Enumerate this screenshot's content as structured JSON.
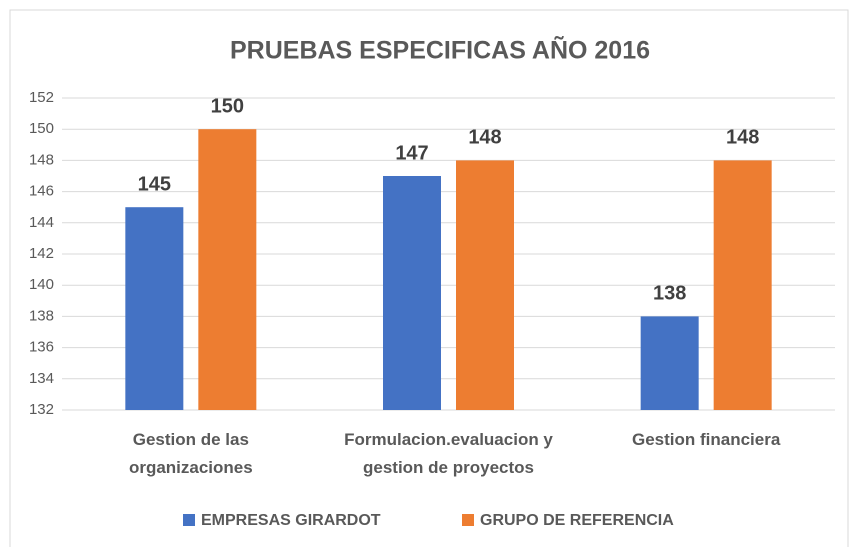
{
  "chart_data": {
    "type": "bar",
    "title": "PRUEBAS ESPECIFICAS AÑO 2016",
    "categories": [
      "Gestion de las organizaciones",
      "Formulacion.evaluacion y gestion de proyectos",
      "Gestion financiera"
    ],
    "series": [
      {
        "name": "EMPRESAS GIRARDOT",
        "color": "#4472c4",
        "values": [
          145,
          147,
          138
        ]
      },
      {
        "name": "GRUPO DE REFERENCIA",
        "color": "#ed7d31",
        "values": [
          150,
          148,
          148
        ]
      }
    ],
    "ylim": [
      132,
      152
    ],
    "yticks": [
      132,
      134,
      136,
      138,
      140,
      142,
      144,
      146,
      148,
      150,
      152
    ],
    "grid": true,
    "legend": "bottom"
  }
}
